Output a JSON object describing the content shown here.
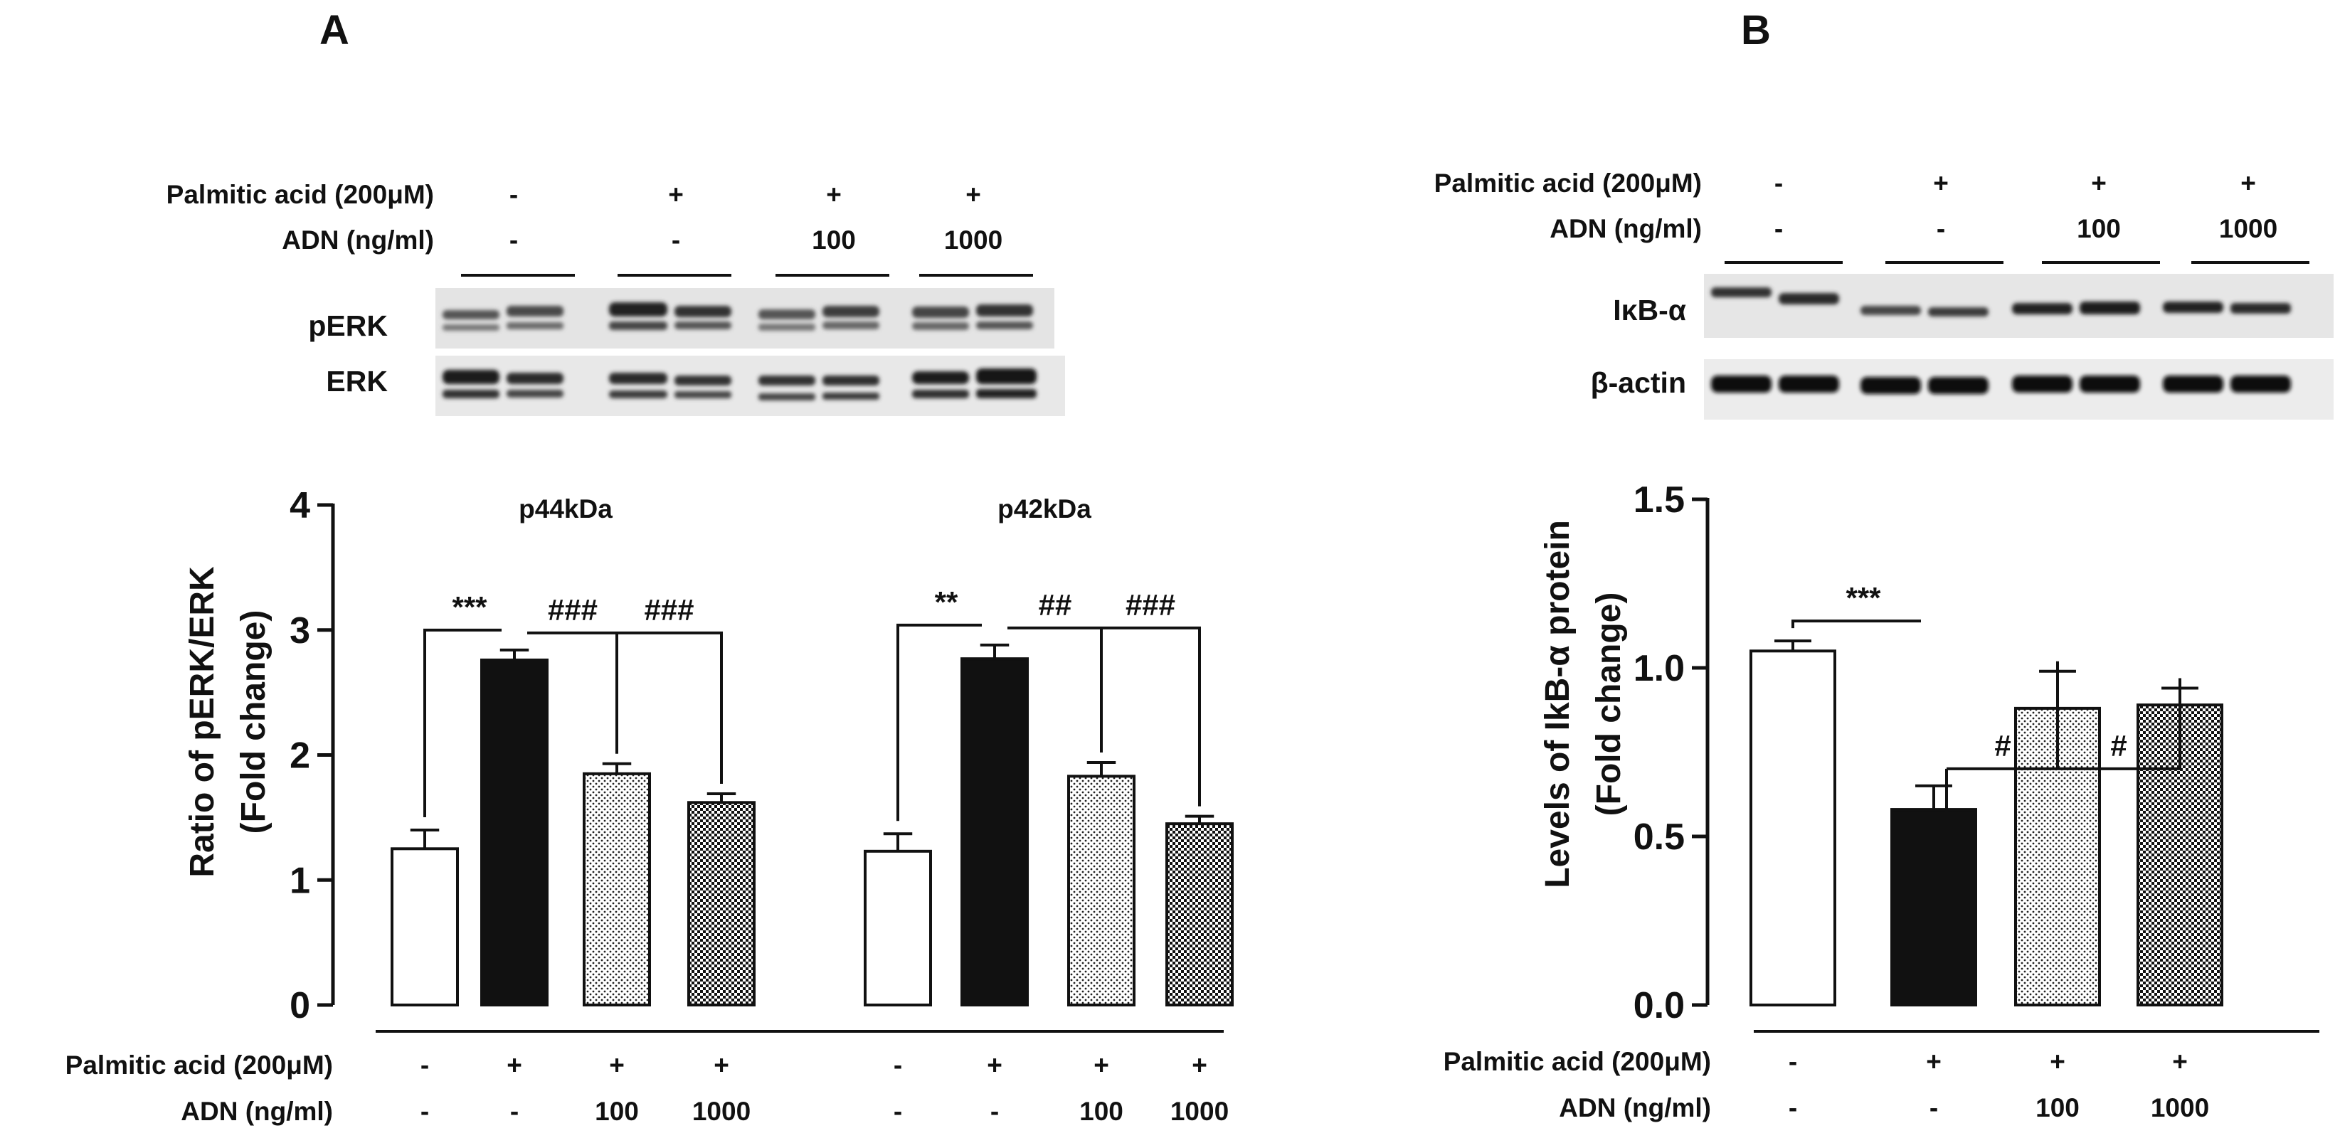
{
  "panels": [
    {
      "letter": "A",
      "blot": {
        "rows": [
          {
            "label": "Palmitic acid (200μM)",
            "values": [
              "-",
              "+",
              "+",
              "+"
            ]
          },
          {
            "label": "ADN (ng/ml)",
            "values": [
              "-",
              "-",
              "100",
              "1000"
            ]
          }
        ],
        "bands": [
          "pERK",
          "ERK"
        ]
      },
      "condition_rows": [
        {
          "label": "Palmitic acid (200μM)",
          "groups": [
            [
              "-",
              "+",
              "+",
              "+"
            ],
            [
              "-",
              "+",
              "+",
              "+"
            ]
          ]
        },
        {
          "label": "ADN (ng/ml)",
          "groups": [
            [
              "-",
              "-",
              "100",
              "1000"
            ],
            [
              "-",
              "-",
              "100",
              "1000"
            ]
          ]
        }
      ]
    },
    {
      "letter": "B",
      "blot": {
        "rows": [
          {
            "label": "Palmitic acid (200μM)",
            "values": [
              "-",
              "+",
              "+",
              "+"
            ]
          },
          {
            "label": "ADN (ng/ml)",
            "values": [
              "-",
              "-",
              "100",
              "1000"
            ]
          }
        ],
        "bands": [
          "IκB-α",
          "β-actin"
        ]
      },
      "condition_rows": [
        {
          "label": "Palmitic acid (200μM)",
          "groups": [
            [
              "-",
              "+",
              "+",
              "+"
            ]
          ]
        },
        {
          "label": "ADN (ng/ml)",
          "groups": [
            [
              "-",
              "-",
              "100",
              "1000"
            ]
          ]
        }
      ]
    }
  ],
  "chart_data": [
    {
      "type": "bar",
      "panel": "A",
      "ylabel_lines": [
        "Ratio of pERK/ERK",
        "(Fold change)"
      ],
      "ylim": [
        0,
        4
      ],
      "yticks": [
        0,
        1,
        2,
        3,
        4
      ],
      "ytick_labels": [
        "0",
        "1",
        "2",
        "3",
        "4"
      ],
      "groups": [
        {
          "title": "p44kDa",
          "values": [
            1.25,
            2.76,
            1.85,
            1.62
          ],
          "errors": [
            0.15,
            0.08,
            0.08,
            0.07
          ],
          "significance": [
            {
              "from": 0,
              "to": 1,
              "label": "***"
            },
            {
              "from": 1,
              "to": 2,
              "label": "###"
            },
            {
              "from": 1,
              "to": 3,
              "label": "###"
            }
          ]
        },
        {
          "title": "p42kDa",
          "values": [
            1.23,
            2.77,
            1.83,
            1.45
          ],
          "errors": [
            0.14,
            0.11,
            0.11,
            0.06
          ],
          "significance": [
            {
              "from": 0,
              "to": 1,
              "label": "**"
            },
            {
              "from": 1,
              "to": 2,
              "label": "##"
            },
            {
              "from": 1,
              "to": 3,
              "label": "###"
            }
          ]
        }
      ],
      "bar_fills": [
        "white",
        "black",
        "light-dots",
        "dense-checker"
      ]
    },
    {
      "type": "bar",
      "panel": "B",
      "ylabel_lines": [
        "Levels of IkB-α protein",
        "(Fold change)"
      ],
      "ylim": [
        0,
        1.5
      ],
      "yticks": [
        0,
        0.5,
        1.0,
        1.5
      ],
      "ytick_labels": [
        "0.0",
        "0.5",
        "1.0",
        "1.5"
      ],
      "groups": [
        {
          "title": "",
          "values": [
            1.05,
            0.58,
            0.88,
            0.89
          ],
          "errors": [
            0.03,
            0.07,
            0.11,
            0.05
          ],
          "significance": [
            {
              "from": 0,
              "to": 1,
              "label": "***"
            },
            {
              "from": 1,
              "to": 2,
              "label": "#"
            },
            {
              "from": 1,
              "to": 3,
              "label": "#"
            }
          ]
        }
      ],
      "bar_fills": [
        "white",
        "black",
        "light-dots",
        "dense-checker"
      ]
    }
  ]
}
